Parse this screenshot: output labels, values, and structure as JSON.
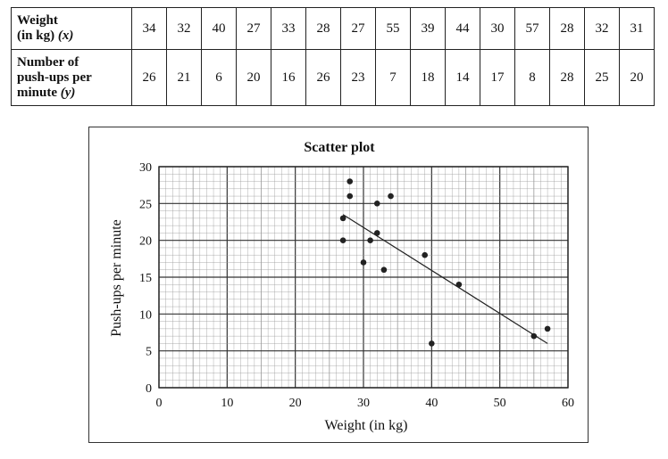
{
  "table": {
    "row_x_label": "Weight",
    "row_x_label2": "(in kg)",
    "row_x_sym": "(x)",
    "row_y_label1": "Number of",
    "row_y_label2": "push-ups per",
    "row_y_label3": "minute",
    "row_y_sym": "(y)",
    "x": [
      "34",
      "32",
      "40",
      "27",
      "33",
      "28",
      "27",
      "55",
      "39",
      "44",
      "30",
      "57",
      "28",
      "32",
      "31"
    ],
    "y": [
      "26",
      "21",
      "6",
      "20",
      "16",
      "26",
      "23",
      "7",
      "18",
      "14",
      "17",
      "8",
      "28",
      "25",
      "20"
    ]
  },
  "chart_data": {
    "type": "scatter",
    "title": "Scatter plot",
    "xlabel": "Weight (in kg)",
    "ylabel": "Push-ups per minute",
    "xlim": [
      0,
      60
    ],
    "ylim": [
      0,
      30
    ],
    "x_ticks": [
      "0",
      "10",
      "20",
      "30",
      "40",
      "50",
      "60"
    ],
    "y_ticks": [
      "0",
      "5",
      "10",
      "15",
      "20",
      "25",
      "30"
    ],
    "grid": true,
    "points": [
      {
        "x": 34,
        "y": 26
      },
      {
        "x": 32,
        "y": 21
      },
      {
        "x": 40,
        "y": 6
      },
      {
        "x": 27,
        "y": 20
      },
      {
        "x": 33,
        "y": 16
      },
      {
        "x": 28,
        "y": 26
      },
      {
        "x": 27,
        "y": 23
      },
      {
        "x": 55,
        "y": 7
      },
      {
        "x": 39,
        "y": 18
      },
      {
        "x": 44,
        "y": 14
      },
      {
        "x": 30,
        "y": 17
      },
      {
        "x": 57,
        "y": 8
      },
      {
        "x": 28,
        "y": 28
      },
      {
        "x": 32,
        "y": 25
      },
      {
        "x": 31,
        "y": 20
      }
    ],
    "trend_line": {
      "x1": 27,
      "y1": 23.5,
      "x2": 57,
      "y2": 6
    }
  }
}
